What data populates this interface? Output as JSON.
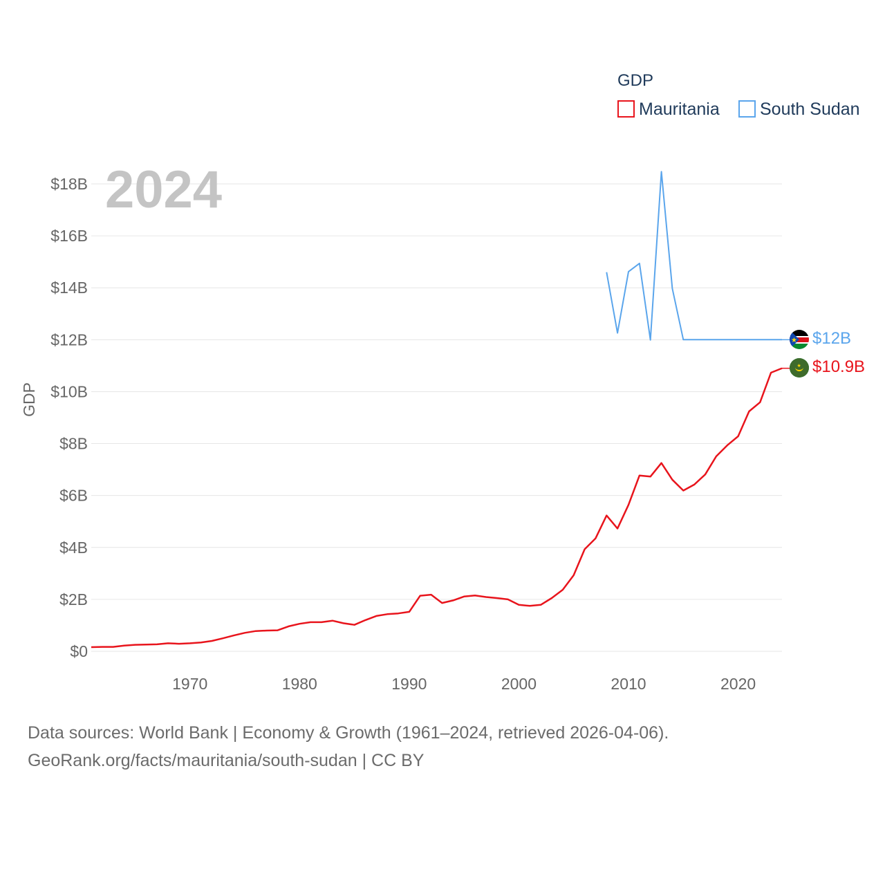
{
  "chart_data": {
    "type": "line",
    "year_label": "2024",
    "legend_title": "GDP",
    "ylabel": "GDP",
    "ylim": [
      0,
      18500000000
    ],
    "xlim": [
      1961,
      2024
    ],
    "y_ticks": [
      {
        "value": 0,
        "label": "$0"
      },
      {
        "value": 2000000000,
        "label": "$2B"
      },
      {
        "value": 4000000000,
        "label": "$4B"
      },
      {
        "value": 6000000000,
        "label": "$6B"
      },
      {
        "value": 8000000000,
        "label": "$8B"
      },
      {
        "value": 10000000000,
        "label": "$10B"
      },
      {
        "value": 12000000000,
        "label": "$12B"
      },
      {
        "value": 14000000000,
        "label": "$14B"
      },
      {
        "value": 16000000000,
        "label": "$16B"
      },
      {
        "value": 18000000000,
        "label": "$18B"
      }
    ],
    "x_ticks": [
      {
        "value": 1970,
        "label": "1970"
      },
      {
        "value": 1980,
        "label": "1980"
      },
      {
        "value": 1990,
        "label": "1990"
      },
      {
        "value": 2000,
        "label": "2000"
      },
      {
        "value": 2010,
        "label": "2010"
      },
      {
        "value": 2020,
        "label": "2020"
      }
    ],
    "series": [
      {
        "name": "Mauritania",
        "color": "#e8141c",
        "end_label": "$10.9B",
        "flag_icon": "mauritania-flag-icon",
        "x": [
          1961,
          1962,
          1963,
          1964,
          1965,
          1966,
          1967,
          1968,
          1969,
          1970,
          1971,
          1972,
          1973,
          1974,
          1975,
          1976,
          1977,
          1978,
          1979,
          1980,
          1981,
          1982,
          1983,
          1984,
          1985,
          1986,
          1987,
          1988,
          1989,
          1990,
          1991,
          1992,
          1993,
          1994,
          1995,
          1996,
          1997,
          1998,
          1999,
          2000,
          2001,
          2002,
          2003,
          2004,
          2005,
          2006,
          2007,
          2008,
          2009,
          2010,
          2011,
          2012,
          2013,
          2014,
          2015,
          2016,
          2017,
          2018,
          2019,
          2020,
          2021,
          2022,
          2023,
          2024
        ],
        "values": [
          160000000,
          170000000,
          170000000,
          220000000,
          250000000,
          260000000,
          270000000,
          310000000,
          290000000,
          310000000,
          340000000,
          400000000,
          500000000,
          610000000,
          710000000,
          780000000,
          800000000,
          810000000,
          960000000,
          1060000000,
          1120000000,
          1120000000,
          1180000000,
          1080000000,
          1020000000,
          1200000000,
          1360000000,
          1430000000,
          1460000000,
          1520000000,
          2140000000,
          2180000000,
          1860000000,
          1960000000,
          2110000000,
          2150000000,
          2090000000,
          2050000000,
          2000000000,
          1790000000,
          1750000000,
          1790000000,
          2050000000,
          2370000000,
          2930000000,
          3930000000,
          4350000000,
          5230000000,
          4730000000,
          5640000000,
          6770000000,
          6730000000,
          7250000000,
          6610000000,
          6190000000,
          6420000000,
          6810000000,
          7510000000,
          7930000000,
          8280000000,
          9240000000,
          9590000000,
          10730000000,
          10900000000
        ]
      },
      {
        "name": "South Sudan",
        "color": "#5aa5ec",
        "end_label": "$12B",
        "flag_icon": "south-sudan-flag-icon",
        "x": [
          2008,
          2009,
          2010,
          2011,
          2012,
          2013,
          2014,
          2015,
          2016,
          2017,
          2018,
          2019,
          2020,
          2021,
          2022,
          2023,
          2024
        ],
        "values": [
          14600000000,
          12260000000,
          14620000000,
          14940000000,
          11990000000,
          18470000000,
          13970000000,
          12000000000,
          12000000000,
          12000000000,
          12000000000,
          12000000000,
          12000000000,
          12000000000,
          12000000000,
          12000000000,
          12000000000
        ]
      }
    ]
  },
  "footer": {
    "sources": "Data sources: World Bank | Economy & Growth (1961–2024, retrieved 2026-04-06).",
    "link": "GeoRank.org/facts/mauritania/south-sudan | CC BY"
  }
}
